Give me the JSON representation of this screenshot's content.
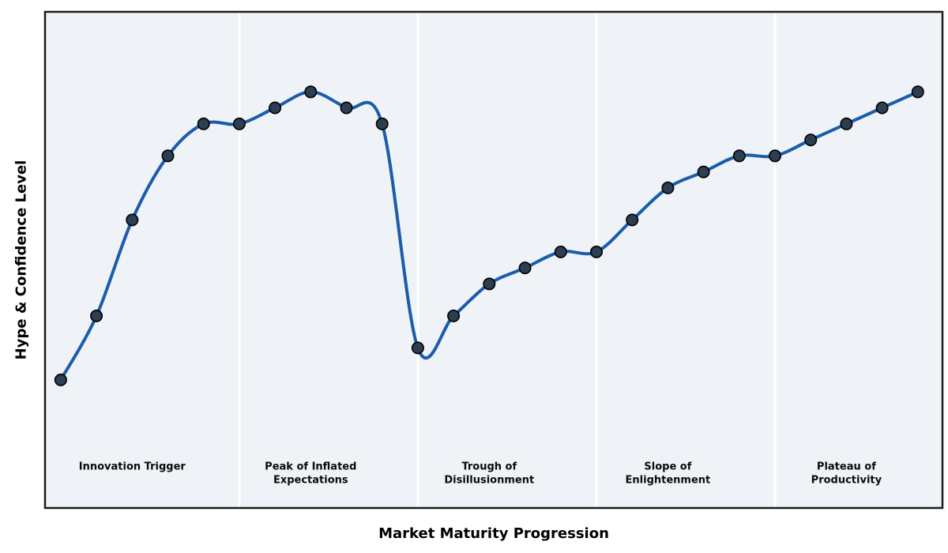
{
  "figure": {
    "background": "#ffffff",
    "plot_background": "#eff3f8",
    "border_color": "#1c1c1c",
    "divider_color": "#ffffff"
  },
  "chart_data": {
    "type": "line",
    "title": "",
    "xlabel": "Market Maturity Progression",
    "ylabel": "Hype & Confidence Level",
    "x": [
      0,
      1,
      2,
      3,
      4,
      5,
      6,
      7,
      8,
      9,
      10,
      11,
      12,
      13,
      14,
      15,
      16,
      17,
      18,
      19,
      20,
      21,
      22,
      23,
      24
    ],
    "values": [
      10,
      30,
      60,
      80,
      90,
      90,
      95,
      100,
      95,
      90,
      20,
      30,
      40,
      45,
      50,
      50,
      60,
      70,
      75,
      80,
      80,
      85,
      90,
      95,
      100
    ],
    "xlim": [
      -0.44,
      24.69
    ],
    "ylim": [
      -30,
      125
    ],
    "grid": false,
    "legend": "none",
    "ticks": "none",
    "line_color": "#1b5cab",
    "line_width": 4,
    "marker_color": "#2c3e50",
    "marker_edge_color": "#000000",
    "phase_dividers_x": [
      5,
      10,
      15,
      20
    ],
    "phases": [
      {
        "name": "innovation-trigger",
        "center_x": 2,
        "lines": [
          "Innovation Trigger"
        ]
      },
      {
        "name": "peak-of-inflated-expectations",
        "center_x": 7,
        "lines": [
          "Peak of Inflated",
          "Expectations"
        ]
      },
      {
        "name": "trough-of-disillusionment",
        "center_x": 12,
        "lines": [
          "Trough of",
          "Disillusionment"
        ]
      },
      {
        "name": "slope-of-enlightenment",
        "center_x": 17,
        "lines": [
          "Slope of",
          "Enlightenment"
        ]
      },
      {
        "name": "plateau-of-productivity",
        "center_x": 22,
        "lines": [
          "Plateau of",
          "Productivity"
        ]
      }
    ]
  }
}
